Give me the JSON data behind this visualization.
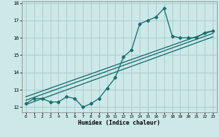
{
  "title": "",
  "xlabel": "Humidex (Indice chaleur)",
  "ylabel": "",
  "bg_color": "#cce8e8",
  "grid_color": "#aacccc",
  "line_color": "#1a6e6e",
  "marker": "D",
  "markersize": 2.2,
  "linewidth": 1.0,
  "xlim": [
    -0.5,
    23.5
  ],
  "ylim": [
    11.7,
    18.1
  ],
  "xticks": [
    0,
    1,
    2,
    3,
    4,
    5,
    6,
    7,
    8,
    9,
    10,
    11,
    12,
    13,
    14,
    15,
    16,
    17,
    18,
    19,
    20,
    21,
    22,
    23
  ],
  "yticks": [
    12,
    13,
    14,
    15,
    16,
    17,
    18
  ],
  "data_x": [
    0,
    1,
    2,
    3,
    4,
    5,
    6,
    7,
    8,
    9,
    10,
    11,
    12,
    13,
    14,
    15,
    16,
    17,
    18,
    19,
    20,
    21,
    22,
    23
  ],
  "data_y": [
    12.2,
    12.5,
    12.5,
    12.3,
    12.3,
    12.6,
    12.5,
    12.0,
    12.2,
    12.5,
    13.1,
    13.7,
    14.9,
    15.3,
    16.8,
    17.0,
    17.2,
    17.7,
    16.1,
    16.0,
    16.0,
    16.0,
    16.3,
    16.4
  ],
  "reg_lines": [
    {
      "x": [
        0,
        23
      ],
      "y": [
        12.15,
        16.05
      ]
    },
    {
      "x": [
        0,
        23
      ],
      "y": [
        12.4,
        16.25
      ]
    },
    {
      "x": [
        0,
        23
      ],
      "y": [
        12.6,
        16.4
      ]
    }
  ]
}
